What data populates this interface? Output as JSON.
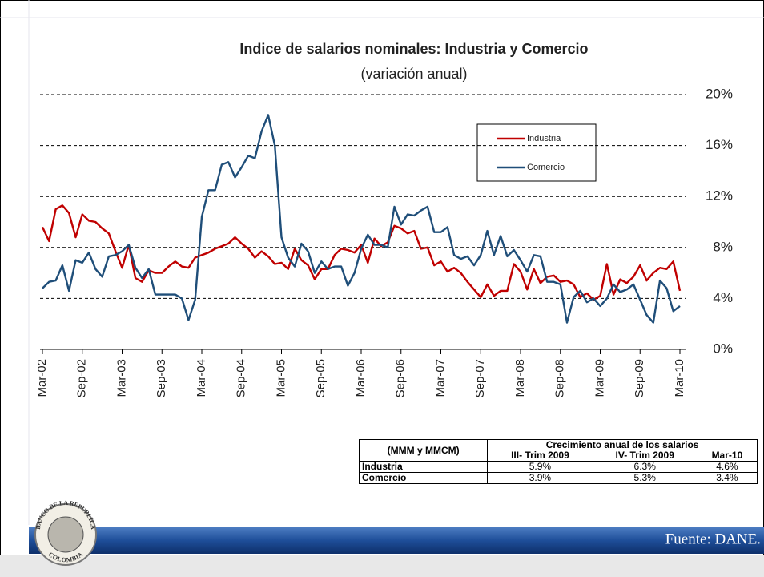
{
  "chart_data": {
    "type": "line",
    "title": "Indice de salarios nominales: Industria y Comercio",
    "subtitle": "(variación anual)",
    "categories": [
      "Mar-02",
      null,
      null,
      null,
      null,
      null,
      "Sep-02",
      null,
      null,
      null,
      null,
      null,
      "Mar-03",
      null,
      null,
      null,
      null,
      null,
      "Sep-03",
      null,
      null,
      null,
      null,
      null,
      "Mar-04",
      null,
      null,
      null,
      null,
      null,
      "Sep-04",
      null,
      null,
      null,
      null,
      null,
      "Mar-05",
      null,
      null,
      null,
      null,
      null,
      "Sep-05",
      null,
      null,
      null,
      null,
      null,
      "Mar-06",
      null,
      null,
      null,
      null,
      null,
      "Sep-06",
      null,
      null,
      null,
      null,
      null,
      "Mar-07",
      null,
      null,
      null,
      null,
      null,
      "Sep-07",
      null,
      null,
      null,
      null,
      null,
      "Mar-08",
      null,
      null,
      null,
      null,
      null,
      "Sep-08",
      null,
      null,
      null,
      null,
      null,
      "Mar-09",
      null,
      null,
      null,
      null,
      null,
      "Sep-09",
      null,
      null,
      null,
      null,
      null,
      "Mar-10"
    ],
    "series": [
      {
        "name": "Industria",
        "color": "#c00000",
        "values": [
          9.6,
          8.5,
          11.0,
          11.3,
          10.7,
          8.8,
          10.6,
          10.1,
          10.0,
          9.5,
          9.1,
          7.7,
          6.4,
          8.2,
          5.6,
          5.3,
          6.2,
          6.0,
          6.0,
          6.5,
          6.9,
          6.5,
          6.4,
          7.2,
          7.4,
          7.6,
          7.9,
          8.1,
          8.3,
          8.8,
          8.3,
          7.9,
          7.2,
          7.7,
          7.3,
          6.7,
          6.8,
          6.3,
          7.9,
          7.0,
          6.6,
          5.5,
          6.3,
          6.3,
          7.4,
          7.9,
          7.8,
          7.6,
          8.2,
          6.8,
          8.7,
          8.1,
          8.4,
          9.7,
          9.5,
          9.1,
          9.3,
          7.9,
          8.0,
          6.6,
          6.9,
          6.1,
          6.4,
          6.0,
          5.3,
          4.7,
          4.1,
          5.1,
          4.2,
          4.6,
          4.6,
          6.7,
          6.1,
          4.7,
          6.3,
          5.2,
          5.7,
          5.8,
          5.3,
          5.4,
          5.1,
          4.1,
          4.4,
          3.9,
          4.2,
          6.7,
          4.3,
          5.5,
          5.2,
          5.7,
          6.6,
          5.4,
          6.0,
          6.4,
          6.3,
          6.9,
          4.6
        ]
      },
      {
        "name": "Comercio",
        "color": "#1f4e79",
        "values": [
          4.8,
          5.3,
          5.4,
          6.6,
          4.6,
          7.0,
          6.8,
          7.6,
          6.3,
          5.7,
          7.3,
          7.4,
          7.7,
          8.2,
          6.4,
          5.6,
          6.3,
          4.3,
          4.3,
          4.3,
          4.3,
          4.0,
          2.3,
          3.9,
          10.4,
          12.5,
          12.5,
          14.5,
          14.7,
          13.5,
          14.3,
          15.2,
          15.0,
          17.1,
          18.4,
          16.0,
          8.8,
          7.2,
          6.5,
          8.3,
          7.7,
          6.0,
          6.9,
          6.3,
          6.5,
          6.5,
          5.0,
          6.0,
          7.9,
          9.0,
          8.2,
          8.2,
          8.0,
          11.2,
          9.8,
          10.6,
          10.5,
          10.9,
          11.2,
          9.2,
          9.2,
          9.6,
          7.4,
          7.1,
          7.3,
          6.6,
          7.4,
          9.3,
          7.4,
          8.9,
          7.3,
          7.8,
          7.0,
          6.1,
          7.4,
          7.3,
          5.3,
          5.3,
          5.1,
          2.1,
          4.1,
          4.6,
          3.7,
          4.0,
          3.4,
          4.0,
          5.1,
          4.5,
          4.7,
          5.1,
          3.9,
          2.7,
          2.1,
          5.4,
          4.8,
          3.0,
          3.4
        ]
      }
    ],
    "ylim": [
      0,
      20
    ],
    "yticks": [
      {
        "value": 0,
        "label": "0%"
      },
      {
        "value": 4,
        "label": "4%"
      },
      {
        "value": 8,
        "label": "8%"
      },
      {
        "value": 12,
        "label": "12%"
      },
      {
        "value": 16,
        "label": "16%"
      },
      {
        "value": 20,
        "label": "20%"
      }
    ],
    "grid": true
  },
  "table": {
    "header": [
      "(MMM y MMCM)",
      "Crecimiento anual de los salarios"
    ],
    "subheader": [
      "III- Trim 2009",
      "IV- Trim 2009",
      "Mar-10"
    ],
    "rows": [
      [
        "Industria",
        "5.9%",
        "6.3%",
        "4.6%"
      ],
      [
        "Comercio",
        "3.9%",
        "5.3%",
        "3.4%"
      ]
    ]
  },
  "footer": {
    "source": "Fuente: DANE.",
    "logo_top": "BANCO DE LA REPUBLICA",
    "logo_bottom": "COLOMBIA"
  }
}
